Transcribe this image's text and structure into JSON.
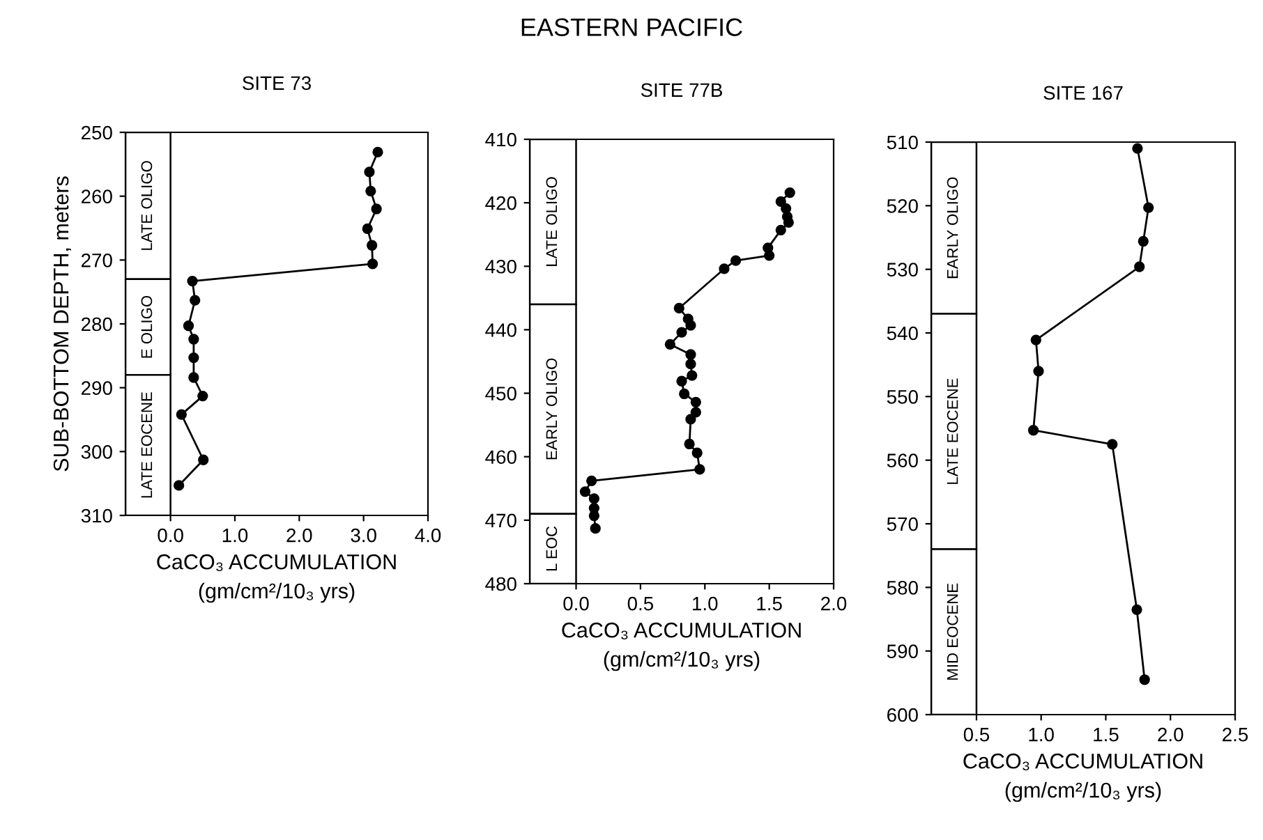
{
  "chart_data": [
    {
      "type": "line",
      "title": "SITE 73",
      "annotations": [
        "EASTERN PACIFIC"
      ],
      "ylabel": "SUB-BOTTOM DEPTH, meters",
      "xlabel": "CaCO₃ ACCUMULATION\n(gm/cm²/10₃ yrs)",
      "series": [
        {
          "color": "#000000",
          "x": [
            3.22,
            3.09,
            3.11,
            3.2,
            3.06,
            3.13,
            3.14,
            0.34,
            0.38,
            0.28,
            0.36,
            0.36,
            0.36,
            0.5,
            0.17,
            0.51,
            0.13
          ],
          "values": [
            253.1,
            256.2,
            259.2,
            262.0,
            265.1,
            267.7,
            270.6,
            273.3,
            276.3,
            280.3,
            282.4,
            285.3,
            288.4,
            291.3,
            294.2,
            301.3,
            305.3
          ]
        }
      ],
      "xlim": [
        -0.7,
        4.0
      ],
      "xticks": [
        {
          "value": 0,
          "label": "0.0"
        },
        {
          "value": 1,
          "label": "1.0"
        },
        {
          "value": 2,
          "label": "2.0"
        },
        {
          "value": 3,
          "label": "3.0"
        },
        {
          "value": 4,
          "label": "4.0"
        }
      ],
      "ylim": [
        310,
        250
      ],
      "yticks": [
        250,
        260,
        270,
        280,
        290,
        300,
        310
      ],
      "bands": [
        {
          "axis": "y",
          "from": 250,
          "to": 273,
          "label": "LATE OLIGO"
        },
        {
          "axis": "y",
          "from": 273,
          "to": 288,
          "label": "E OLIGO"
        },
        {
          "axis": "y",
          "from": 288,
          "to": 310,
          "label": "LATE EOCENE"
        }
      ],
      "marker": "circle",
      "line_style": "solid",
      "grid": false,
      "legend": false
    },
    {
      "type": "line",
      "title": "SITE 77B",
      "xlabel": "CaCO₃ ACCUMULATION\n(gm/cm²/10₃ yrs)",
      "series": [
        {
          "color": "#000000",
          "x": [
            1.66,
            1.59,
            1.63,
            1.64,
            1.65,
            1.59,
            1.49,
            1.5,
            1.24,
            1.15,
            0.8,
            0.87,
            0.89,
            0.82,
            0.73,
            0.89,
            0.89,
            0.9,
            0.82,
            0.84,
            0.93,
            0.93,
            0.89,
            0.88,
            0.94,
            0.96,
            0.12,
            0.07,
            0.14,
            0.14,
            0.14,
            0.15
          ],
          "values": [
            418.4,
            419.8,
            420.9,
            422.2,
            423.1,
            424.3,
            427.1,
            428.3,
            429.1,
            430.4,
            436.6,
            438.3,
            439.3,
            440.4,
            442.3,
            443.9,
            445.4,
            447.2,
            448.1,
            450.1,
            451.4,
            453.0,
            454.1,
            458.0,
            459.4,
            462.0,
            463.8,
            465.5,
            466.6,
            468.1,
            469.3,
            471.3
          ]
        }
      ],
      "xlim": [
        -0.36,
        2.0
      ],
      "xticks": [
        {
          "value": 0,
          "label": "0.0"
        },
        0.5,
        {
          "value": 1,
          "label": "1.0"
        },
        1.5,
        {
          "value": 2,
          "label": "2.0"
        }
      ],
      "ylim": [
        480,
        410
      ],
      "yticks": [
        410,
        420,
        430,
        440,
        450,
        460,
        470,
        480
      ],
      "bands": [
        {
          "axis": "y",
          "from": 410,
          "to": 436,
          "label": "LATE OLIGO"
        },
        {
          "axis": "y",
          "from": 436,
          "to": 469,
          "label": "EARLY OLIGO"
        },
        {
          "axis": "y",
          "from": 469,
          "to": 480,
          "label": "L EOC"
        }
      ],
      "marker": "circle",
      "line_style": "solid",
      "grid": false,
      "legend": false
    },
    {
      "type": "line",
      "title": "SITE 167",
      "xlabel": "CaCO₃ ACCUMULATION\n(gm/cm²/10₃ yrs)",
      "series": [
        {
          "color": "#000000",
          "x": [
            1.745,
            1.83,
            1.79,
            1.76,
            0.96,
            0.98,
            0.94,
            1.55,
            1.74,
            1.8
          ],
          "values": [
            511.0,
            520.3,
            525.6,
            529.6,
            541.1,
            546.0,
            555.3,
            557.5,
            583.5,
            594.5
          ]
        }
      ],
      "xlim": [
        0.15,
        2.5
      ],
      "xticks": [
        0.5,
        {
          "value": 1,
          "label": "1.0"
        },
        1.5,
        {
          "value": 2,
          "label": "2.0"
        },
        2.5
      ],
      "ylim": [
        600,
        510
      ],
      "yticks": [
        510,
        520,
        530,
        540,
        550,
        560,
        570,
        580,
        590,
        600
      ],
      "bands": [
        {
          "axis": "y",
          "from": 510,
          "to": 537,
          "label": "EARLY OLIGO"
        },
        {
          "axis": "y",
          "from": 537,
          "to": 574,
          "label": "LATE EOCENE"
        },
        {
          "axis": "y",
          "from": 574,
          "to": 600,
          "label": "MID EOCENE"
        }
      ],
      "marker": "circle",
      "line_style": "solid",
      "grid": false,
      "legend": false
    }
  ]
}
